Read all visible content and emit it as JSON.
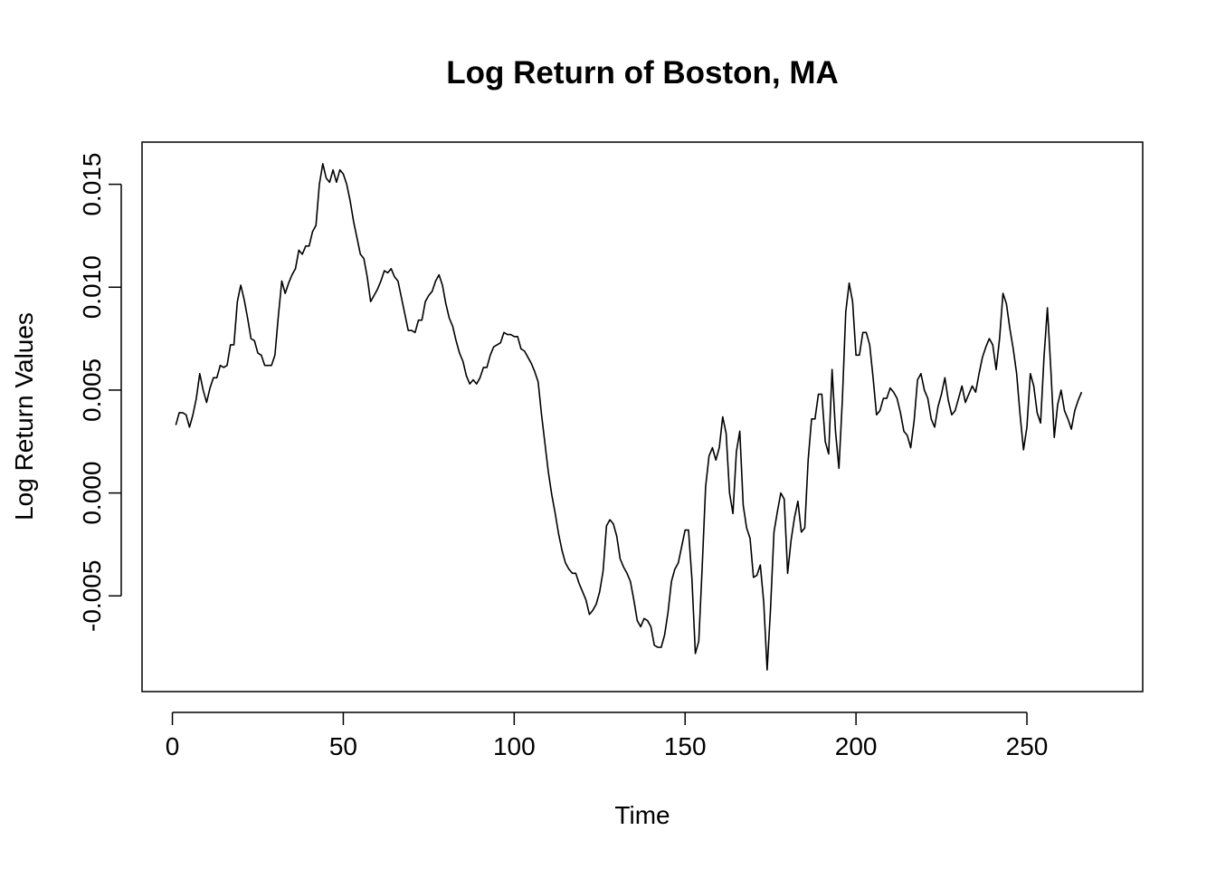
{
  "chart_data": {
    "type": "line",
    "title": "Log Return of Boston, MA",
    "xlabel": "Time",
    "ylabel": "Log Return Values",
    "xlim": [
      -8.88,
      283.88
    ],
    "ylim": [
      -0.00965,
      0.01705
    ],
    "x_ticks": [
      0,
      50,
      100,
      150,
      200,
      250
    ],
    "x_tick_labels": [
      "0",
      "50",
      "100",
      "150",
      "200",
      "250"
    ],
    "y_ticks": [
      -0.005,
      0.0,
      0.005,
      0.01,
      0.015
    ],
    "y_tick_labels": [
      "-0.005",
      "0.000",
      "0.005",
      "0.010",
      "0.015"
    ],
    "grid": false,
    "legend": "none",
    "line_color": "#000000",
    "series": [
      {
        "x_start": 1,
        "x_step": 1,
        "values": [
          0.0033,
          0.0039,
          0.0039,
          0.0038,
          0.0032,
          0.0038,
          0.0046,
          0.0058,
          0.005,
          0.0044,
          0.0051,
          0.0056,
          0.0056,
          0.0062,
          0.0061,
          0.0062,
          0.0072,
          0.0072,
          0.0093,
          0.0101,
          0.0094,
          0.0085,
          0.0075,
          0.0074,
          0.0068,
          0.0067,
          0.0062,
          0.0062,
          0.0062,
          0.0067,
          0.0086,
          0.0103,
          0.0097,
          0.0102,
          0.0106,
          0.0109,
          0.0118,
          0.0116,
          0.012,
          0.012,
          0.0127,
          0.013,
          0.015,
          0.016,
          0.0153,
          0.0151,
          0.0157,
          0.0151,
          0.0157,
          0.0155,
          0.015,
          0.0142,
          0.0132,
          0.0124,
          0.0116,
          0.0114,
          0.0105,
          0.0093,
          0.0096,
          0.0099,
          0.0103,
          0.0108,
          0.0107,
          0.0109,
          0.0105,
          0.0103,
          0.0095,
          0.0087,
          0.0079,
          0.0079,
          0.0078,
          0.0084,
          0.0084,
          0.0093,
          0.0096,
          0.0098,
          0.0103,
          0.0106,
          0.0101,
          0.0092,
          0.0085,
          0.0081,
          0.0074,
          0.0068,
          0.0064,
          0.0057,
          0.0053,
          0.0055,
          0.0053,
          0.0056,
          0.0061,
          0.0061,
          0.0067,
          0.0071,
          0.0072,
          0.0073,
          0.0078,
          0.0077,
          0.0077,
          0.0076,
          0.0076,
          0.007,
          0.0069,
          0.0066,
          0.0063,
          0.0059,
          0.0054,
          0.0038,
          0.0024,
          0.001,
          -0.0001,
          -0.001,
          -0.002,
          -0.0028,
          -0.0034,
          -0.0037,
          -0.0039,
          -0.0039,
          -0.0044,
          -0.0048,
          -0.0052,
          -0.0059,
          -0.0057,
          -0.0054,
          -0.0048,
          -0.0038,
          -0.0016,
          -0.0013,
          -0.0015,
          -0.0021,
          -0.0032,
          -0.0036,
          -0.0039,
          -0.0043,
          -0.0052,
          -0.0062,
          -0.0065,
          -0.0061,
          -0.0062,
          -0.0065,
          -0.0074,
          -0.0075,
          -0.0075,
          -0.0069,
          -0.0058,
          -0.0043,
          -0.0037,
          -0.0034,
          -0.0026,
          -0.0018,
          -0.0018,
          -0.0042,
          -0.0078,
          -0.0072,
          -0.0036,
          0.0003,
          0.0018,
          0.0022,
          0.0016,
          0.0022,
          0.0037,
          0.0029,
          0.0,
          -0.001,
          0.002,
          0.003,
          -0.0006,
          -0.0017,
          -0.0022,
          -0.0041,
          -0.004,
          -0.0035,
          -0.0053,
          -0.0086,
          -0.0056,
          -0.0019,
          -0.0009,
          0.0,
          -0.0003,
          -0.0039,
          -0.0023,
          -0.0012,
          -0.0004,
          -0.0019,
          -0.0017,
          0.0016,
          0.0036,
          0.0036,
          0.0048,
          0.0048,
          0.0025,
          0.0019,
          0.006,
          0.003,
          0.0012,
          0.0045,
          0.0088,
          0.0102,
          0.0093,
          0.0067,
          0.0067,
          0.0078,
          0.0078,
          0.0072,
          0.0056,
          0.0038,
          0.004,
          0.0046,
          0.0046,
          0.0051,
          0.0049,
          0.0046,
          0.0039,
          0.003,
          0.0028,
          0.0022,
          0.0035,
          0.0055,
          0.0058,
          0.005,
          0.0046,
          0.0036,
          0.0032,
          0.0042,
          0.0048,
          0.0056,
          0.0045,
          0.0038,
          0.004,
          0.0046,
          0.0052,
          0.0044,
          0.0048,
          0.0052,
          0.0049,
          0.0058,
          0.0066,
          0.0071,
          0.0075,
          0.0072,
          0.006,
          0.0075,
          0.0097,
          0.0092,
          0.008,
          0.007,
          0.0058,
          0.0038,
          0.0021,
          0.0032,
          0.0058,
          0.0052,
          0.0039,
          0.0034,
          0.0066,
          0.009,
          0.006,
          0.0027,
          0.0043,
          0.005,
          0.004,
          0.0036,
          0.0031,
          0.004,
          0.0045,
          0.0049
        ]
      }
    ]
  }
}
